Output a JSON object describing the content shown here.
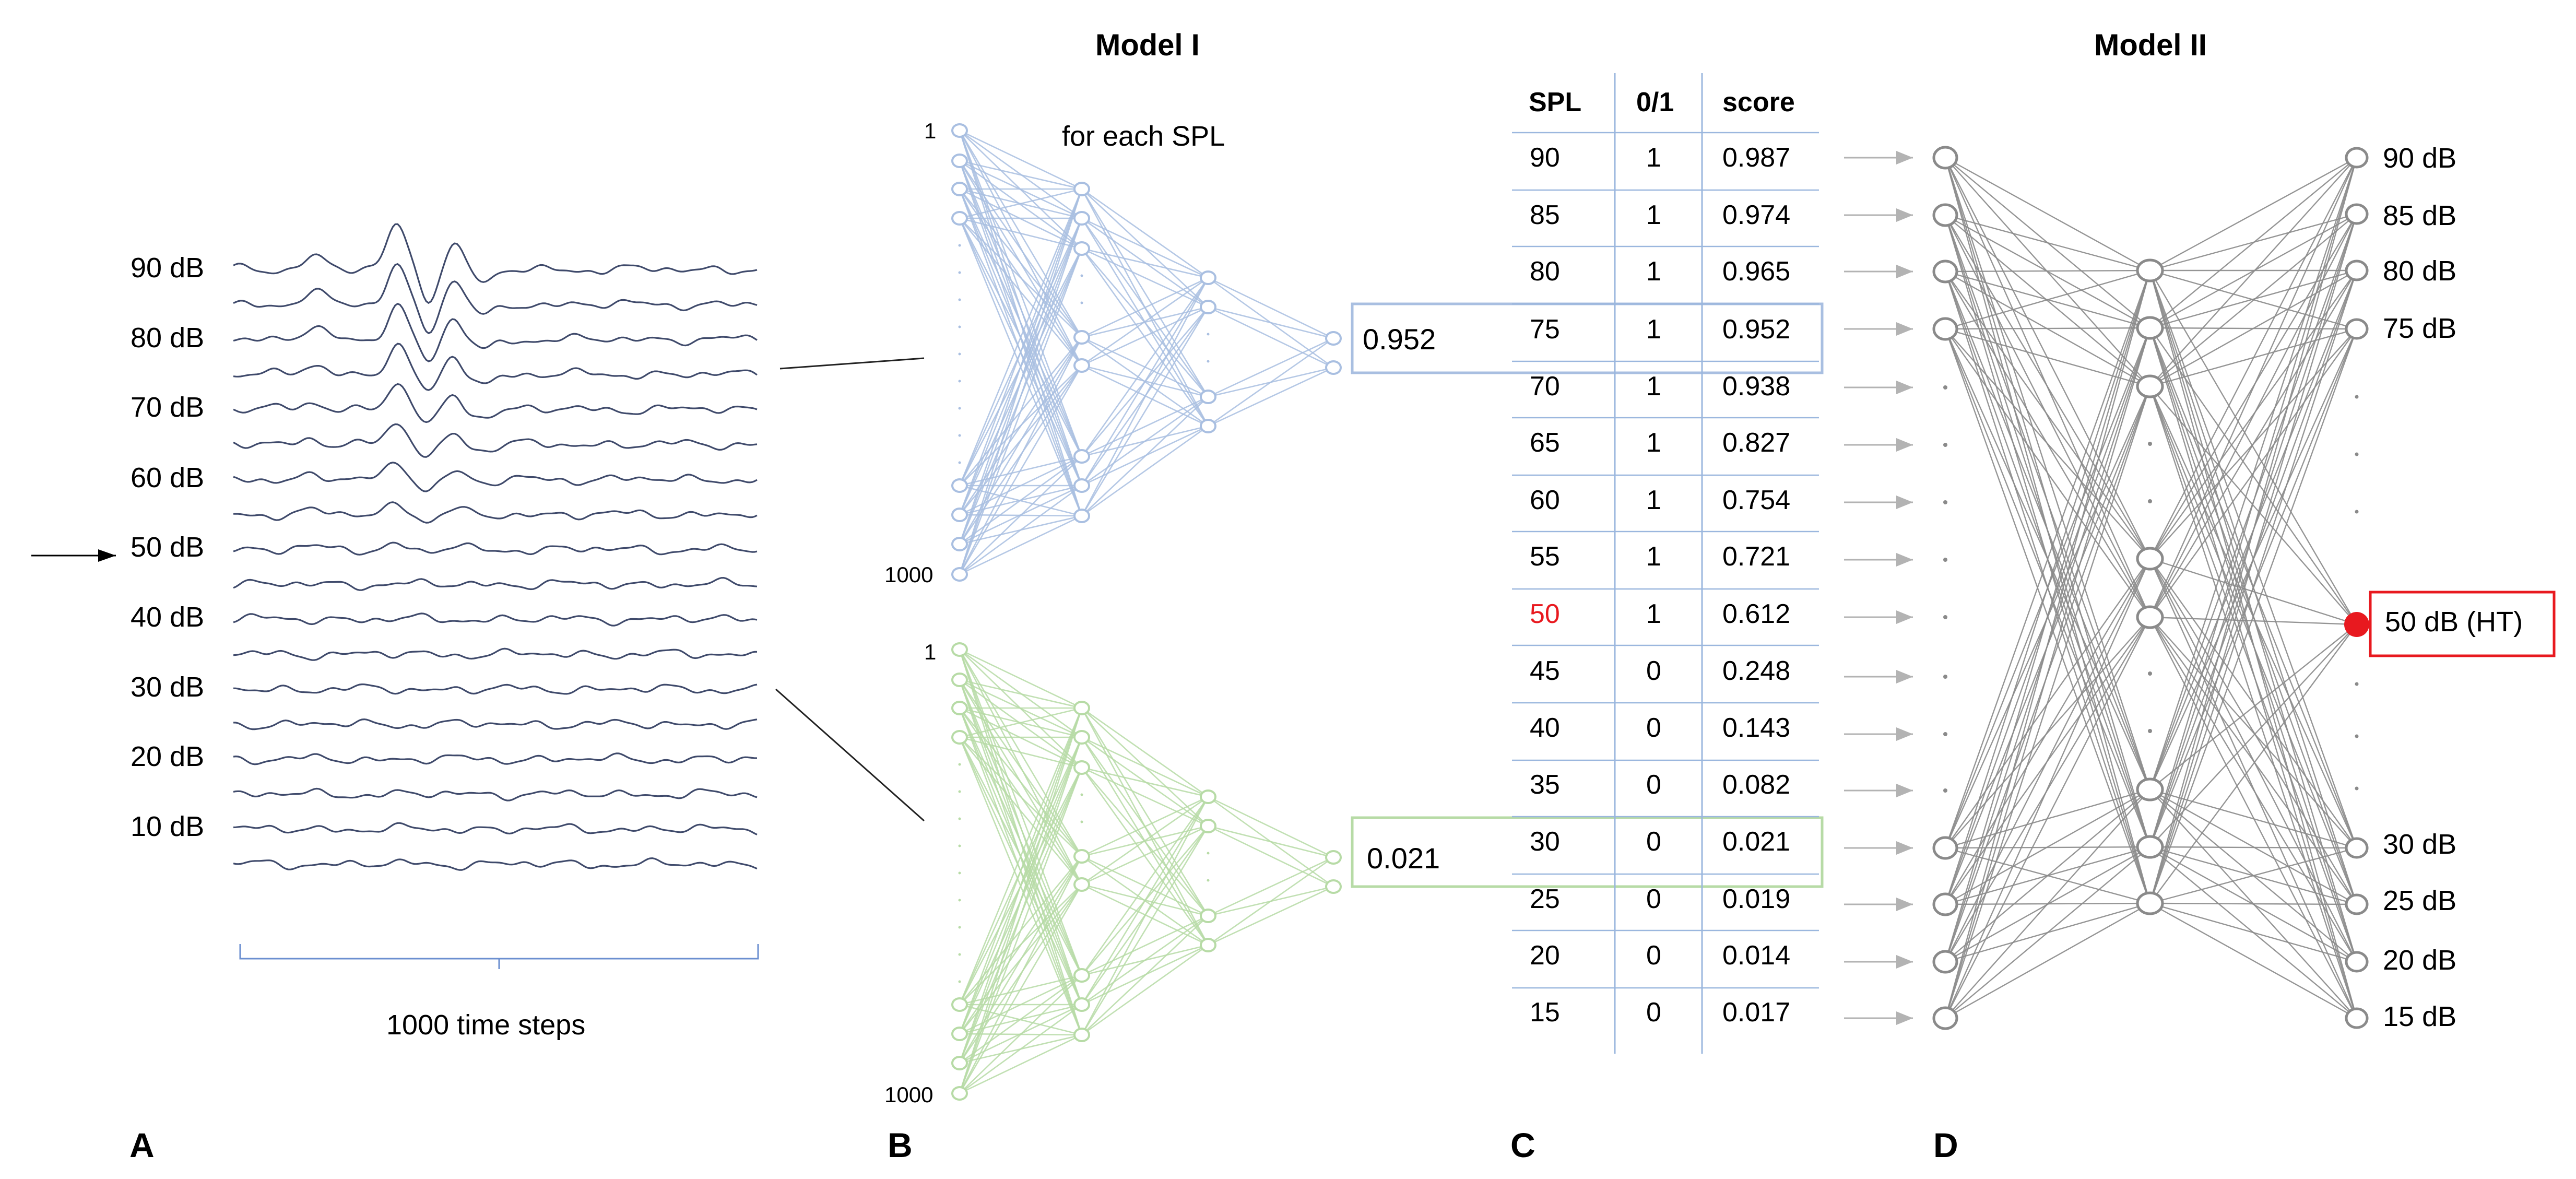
{
  "panels": {
    "a": "A",
    "b": "B",
    "c": "C",
    "d": "D"
  },
  "panel_a": {
    "db_labels": [
      "90 dB",
      "80 dB",
      "70 dB",
      "60 dB",
      "50 dB",
      "40 dB",
      "30 dB",
      "20 dB",
      "10 dB"
    ],
    "x_axis_label": "1000 time steps"
  },
  "model_one": {
    "title": "Model I",
    "subtitle": "for each SPL",
    "input_first": "1",
    "input_last": "1000",
    "blue_output": "0.952",
    "green_output": "0.021",
    "colors": {
      "blue": "#a9bfe1",
      "green": "#b7dba6"
    }
  },
  "table": {
    "headers": [
      "SPL",
      "0/1",
      "score"
    ],
    "rows": [
      {
        "spl": "90",
        "label": "1",
        "score": "0.987"
      },
      {
        "spl": "85",
        "label": "1",
        "score": "0.974"
      },
      {
        "spl": "80",
        "label": "1",
        "score": "0.965"
      },
      {
        "spl": "75",
        "label": "1",
        "score": "0.952"
      },
      {
        "spl": "70",
        "label": "1",
        "score": "0.938"
      },
      {
        "spl": "65",
        "label": "1",
        "score": "0.827"
      },
      {
        "spl": "60",
        "label": "1",
        "score": "0.754"
      },
      {
        "spl": "55",
        "label": "1",
        "score": "0.721"
      },
      {
        "spl": "50",
        "label": "1",
        "score": "0.612"
      },
      {
        "spl": "45",
        "label": "0",
        "score": "0.248"
      },
      {
        "spl": "40",
        "label": "0",
        "score": "0.143"
      },
      {
        "spl": "35",
        "label": "0",
        "score": "0.082"
      },
      {
        "spl": "30",
        "label": "0",
        "score": "0.021"
      },
      {
        "spl": "25",
        "label": "0",
        "score": "0.019"
      },
      {
        "spl": "20",
        "label": "0",
        "score": "0.014"
      },
      {
        "spl": "15",
        "label": "0",
        "score": "0.017"
      }
    ],
    "threshold_color": "#e8191f",
    "line_color": "#9bb7de"
  },
  "model_two": {
    "title": "Model II",
    "outputs_top": [
      "90 dB",
      "85 dB",
      "80 dB",
      "75 dB"
    ],
    "outputs_bottom": [
      "30 dB",
      "25 dB",
      "20 dB",
      "15 dB"
    ],
    "threshold_output": "50 dB (HT)",
    "threshold_color": "#e8191f",
    "net_color": "#8a8a8a"
  }
}
